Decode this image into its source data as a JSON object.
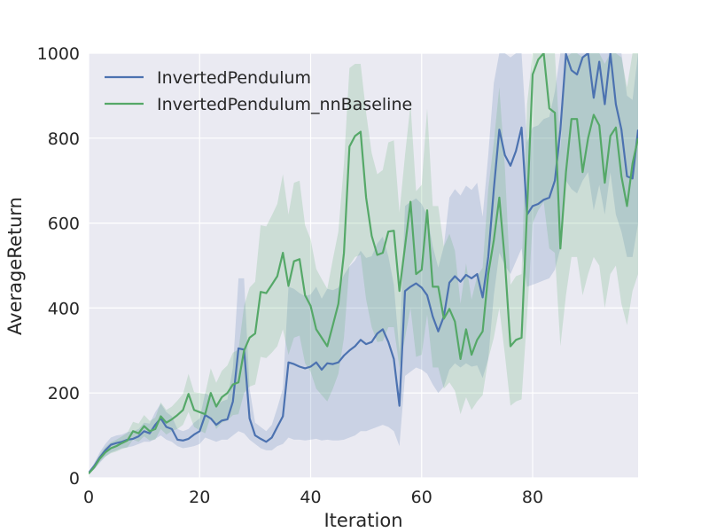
{
  "chart_data": {
    "type": "line",
    "xlabel": "Iteration",
    "ylabel": "AverageReturn",
    "xlim": [
      0,
      99
    ],
    "ylim": [
      0,
      1000
    ],
    "xticks": [
      0,
      20,
      40,
      60,
      80
    ],
    "yticks": [
      0,
      200,
      400,
      600,
      800,
      1000
    ],
    "grid": true,
    "legend_position": "top-left",
    "background_color": "#EAEAF2",
    "series": [
      {
        "name": "InvertedPendulum",
        "color": "#4C72B0",
        "band_color": "#4C72B0",
        "x": [
          0,
          1,
          2,
          3,
          4,
          5,
          6,
          7,
          8,
          9,
          10,
          11,
          12,
          13,
          14,
          15,
          16,
          17,
          18,
          19,
          20,
          21,
          22,
          23,
          24,
          25,
          26,
          27,
          28,
          29,
          30,
          31,
          32,
          33,
          34,
          35,
          36,
          37,
          38,
          39,
          40,
          41,
          42,
          43,
          44,
          45,
          46,
          47,
          48,
          49,
          50,
          51,
          52,
          53,
          54,
          55,
          56,
          57,
          58,
          59,
          60,
          61,
          62,
          63,
          64,
          65,
          66,
          67,
          68,
          69,
          70,
          71,
          72,
          73,
          74,
          75,
          76,
          77,
          78,
          79,
          80,
          81,
          82,
          83,
          84,
          85,
          86,
          87,
          88,
          89,
          90,
          91,
          92,
          93,
          94,
          95,
          96,
          97,
          98,
          99
        ],
        "values": [
          12,
          28,
          48,
          65,
          78,
          82,
          85,
          90,
          92,
          98,
          110,
          105,
          125,
          140,
          120,
          115,
          90,
          88,
          92,
          102,
          110,
          148,
          140,
          125,
          135,
          138,
          180,
          305,
          302,
          140,
          100,
          92,
          85,
          95,
          120,
          145,
          272,
          268,
          262,
          258,
          262,
          272,
          255,
          270,
          268,
          272,
          288,
          300,
          310,
          325,
          315,
          320,
          340,
          350,
          320,
          280,
          170,
          440,
          450,
          458,
          448,
          430,
          380,
          345,
          380,
          460,
          475,
          462,
          478,
          470,
          480,
          425,
          520,
          680,
          820,
          760,
          735,
          770,
          825,
          620,
          640,
          645,
          655,
          660,
          700,
          820,
          998,
          960,
          950,
          990,
          1000,
          895,
          980,
          880,
          1000,
          880,
          820,
          710,
          705,
          820
        ],
        "lower": [
          10,
          20,
          35,
          50,
          60,
          65,
          70,
          72,
          75,
          80,
          85,
          85,
          92,
          100,
          90,
          85,
          75,
          70,
          72,
          75,
          80,
          95,
          90,
          85,
          90,
          90,
          100,
          110,
          105,
          90,
          80,
          70,
          65,
          65,
          75,
          80,
          95,
          90,
          90,
          88,
          90,
          92,
          88,
          90,
          88,
          88,
          90,
          95,
          100,
          110,
          110,
          115,
          120,
          125,
          120,
          110,
          75,
          240,
          250,
          260,
          255,
          245,
          220,
          200,
          215,
          255,
          270,
          260,
          270,
          262,
          265,
          235,
          280,
          430,
          530,
          500,
          480,
          510,
          540,
          450,
          455,
          460,
          465,
          470,
          490,
          540,
          700,
          680,
          670,
          700,
          720,
          630,
          690,
          620,
          720,
          620,
          580,
          520,
          520,
          600
        ],
        "upper": [
          14,
          35,
          60,
          80,
          95,
          100,
          102,
          108,
          110,
          115,
          130,
          128,
          155,
          175,
          155,
          145,
          115,
          110,
          115,
          130,
          140,
          200,
          190,
          170,
          180,
          185,
          260,
          470,
          470,
          210,
          130,
          120,
          110,
          125,
          165,
          210,
          450,
          445,
          435,
          428,
          432,
          450,
          422,
          445,
          442,
          448,
          478,
          498,
          512,
          535,
          518,
          522,
          552,
          568,
          522,
          455,
          295,
          640,
          650,
          658,
          645,
          618,
          545,
          495,
          545,
          660,
          680,
          665,
          688,
          678,
          695,
          615,
          760,
          930,
          1000,
          1000,
          990,
          1000,
          1000,
          790,
          825,
          830,
          845,
          850,
          910,
          1000,
          1000,
          1000,
          1000,
          1000,
          1000,
          1000,
          1000,
          1000,
          1000,
          1000,
          1000,
          900,
          890,
          1000
        ]
      },
      {
        "name": "InvertedPendulum_nnBaseline",
        "color": "#55A868",
        "band_color": "#55A868",
        "x": [
          0,
          1,
          2,
          3,
          4,
          5,
          6,
          7,
          8,
          9,
          10,
          11,
          12,
          13,
          14,
          15,
          16,
          17,
          18,
          19,
          20,
          21,
          22,
          23,
          24,
          25,
          26,
          27,
          28,
          29,
          30,
          31,
          32,
          33,
          34,
          35,
          36,
          37,
          38,
          39,
          40,
          41,
          42,
          43,
          44,
          45,
          46,
          47,
          48,
          49,
          50,
          51,
          52,
          53,
          54,
          55,
          56,
          57,
          58,
          59,
          60,
          61,
          62,
          63,
          64,
          65,
          66,
          67,
          68,
          69,
          70,
          71,
          72,
          73,
          74,
          75,
          76,
          77,
          78,
          79,
          80,
          81,
          82,
          83,
          84,
          85,
          86,
          87,
          88,
          89,
          90,
          91,
          92,
          93,
          94,
          95,
          96,
          97,
          98,
          99
        ],
        "values": [
          10,
          25,
          45,
          60,
          70,
          75,
          82,
          88,
          110,
          105,
          122,
          110,
          115,
          145,
          130,
          138,
          148,
          160,
          198,
          160,
          155,
          150,
          200,
          168,
          190,
          200,
          220,
          225,
          300,
          330,
          340,
          438,
          435,
          455,
          475,
          530,
          452,
          510,
          515,
          430,
          405,
          350,
          330,
          310,
          360,
          410,
          530,
          780,
          805,
          815,
          660,
          570,
          525,
          530,
          580,
          582,
          440,
          545,
          650,
          480,
          490,
          630,
          450,
          450,
          375,
          398,
          368,
          280,
          350,
          290,
          325,
          345,
          480,
          560,
          660,
          510,
          310,
          325,
          330,
          630,
          950,
          985,
          1000,
          870,
          860,
          540,
          720,
          845,
          845,
          720,
          800,
          855,
          830,
          695,
          805,
          825,
          710,
          640,
          740,
          800
        ],
        "lower": [
          8,
          20,
          38,
          50,
          58,
          62,
          68,
          72,
          90,
          85,
          98,
          88,
          90,
          115,
          102,
          110,
          115,
          125,
          155,
          120,
          112,
          105,
          145,
          115,
          130,
          135,
          148,
          150,
          200,
          215,
          220,
          285,
          282,
          295,
          310,
          350,
          290,
          330,
          335,
          270,
          250,
          210,
          195,
          180,
          210,
          245,
          330,
          500,
          520,
          525,
          420,
          355,
          320,
          322,
          355,
          355,
          260,
          330,
          400,
          285,
          290,
          385,
          260,
          260,
          210,
          225,
          205,
          150,
          190,
          160,
          180,
          195,
          280,
          330,
          400,
          290,
          170,
          180,
          185,
          380,
          600,
          630,
          650,
          540,
          530,
          310,
          430,
          520,
          520,
          430,
          480,
          520,
          500,
          400,
          480,
          500,
          410,
          360,
          440,
          480
        ],
        "upper": [
          12,
          32,
          55,
          72,
          84,
          90,
          98,
          106,
          132,
          128,
          148,
          134,
          142,
          178,
          160,
          168,
          182,
          198,
          245,
          202,
          200,
          198,
          258,
          224,
          252,
          265,
          295,
          302,
          405,
          448,
          462,
          595,
          592,
          618,
          645,
          715,
          620,
          695,
          700,
          595,
          562,
          492,
          468,
          445,
          515,
          580,
          740,
          965,
          975,
          975,
          860,
          765,
          715,
          725,
          790,
          795,
          625,
          760,
          880,
          675,
          690,
          870,
          640,
          640,
          545,
          575,
          535,
          410,
          505,
          420,
          475,
          495,
          680,
          790,
          920,
          730,
          455,
          475,
          480,
          880,
          1000,
          1000,
          1000,
          1000,
          1000,
          770,
          990,
          1000,
          1000,
          990,
          1000,
          1000,
          1000,
          975,
          1000,
          1000,
          990,
          920,
          1000,
          1000
        ]
      }
    ]
  }
}
